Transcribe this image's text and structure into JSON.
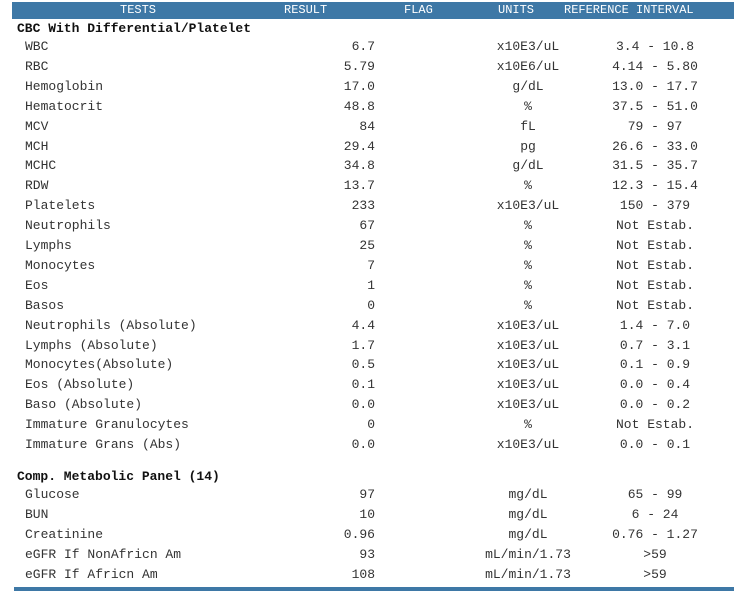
{
  "header": {
    "tests": "TESTS",
    "result": "RESULT",
    "flag": "FLAG",
    "units": "UNITS",
    "reference": "REFERENCE INTERVAL"
  },
  "sections": [
    {
      "title": "CBC With Differential/Platelet",
      "rows": [
        {
          "test": "WBC",
          "result": "6.7",
          "units": "x10E3/uL",
          "ref": "3.4 - 10.8"
        },
        {
          "test": "RBC",
          "result": "5.79",
          "units": "x10E6/uL",
          "ref": "4.14 - 5.80"
        },
        {
          "test": "Hemoglobin",
          "result": "17.0",
          "units": "g/dL",
          "ref": "13.0 - 17.7"
        },
        {
          "test": "Hematocrit",
          "result": "48.8",
          "units": "%",
          "ref": "37.5 - 51.0"
        },
        {
          "test": "MCV",
          "result": "84",
          "units": "fL",
          "ref": "79 - 97"
        },
        {
          "test": "MCH",
          "result": "29.4",
          "units": "pg",
          "ref": "26.6 - 33.0"
        },
        {
          "test": "MCHC",
          "result": "34.8",
          "units": "g/dL",
          "ref": "31.5 - 35.7"
        },
        {
          "test": "RDW",
          "result": "13.7",
          "units": "%",
          "ref": "12.3 - 15.4"
        },
        {
          "test": "Platelets",
          "result": "233",
          "units": "x10E3/uL",
          "ref": "150 - 379"
        },
        {
          "test": "Neutrophils",
          "result": "67",
          "units": "%",
          "ref": "Not Estab."
        },
        {
          "test": "Lymphs",
          "result": "25",
          "units": "%",
          "ref": "Not Estab."
        },
        {
          "test": "Monocytes",
          "result": "7",
          "units": "%",
          "ref": "Not Estab."
        },
        {
          "test": "Eos",
          "result": "1",
          "units": "%",
          "ref": "Not Estab."
        },
        {
          "test": "Basos",
          "result": "0",
          "units": "%",
          "ref": "Not Estab."
        },
        {
          "test": "Neutrophils (Absolute)",
          "result": "4.4",
          "units": "x10E3/uL",
          "ref": "1.4 - 7.0"
        },
        {
          "test": "Lymphs (Absolute)",
          "result": "1.7",
          "units": "x10E3/uL",
          "ref": "0.7 - 3.1"
        },
        {
          "test": "Monocytes(Absolute)",
          "result": "0.5",
          "units": "x10E3/uL",
          "ref": "0.1 - 0.9"
        },
        {
          "test": "Eos (Absolute)",
          "result": "0.1",
          "units": "x10E3/uL",
          "ref": "0.0 - 0.4"
        },
        {
          "test": "Baso (Absolute)",
          "result": "0.0",
          "units": "x10E3/uL",
          "ref": "0.0 - 0.2"
        },
        {
          "test": "Immature Granulocytes",
          "result": "0",
          "units": "%",
          "ref": "Not Estab."
        },
        {
          "test": "Immature Grans (Abs)",
          "result": "0.0",
          "units": "x10E3/uL",
          "ref": "0.0 - 0.1"
        }
      ]
    },
    {
      "title": "Comp. Metabolic Panel (14)",
      "rows": [
        {
          "test": "Glucose",
          "result": "97",
          "units": "mg/dL",
          "ref": "65 - 99"
        },
        {
          "test": "BUN",
          "result": "10",
          "units": "mg/dL",
          "ref": "6 - 24"
        },
        {
          "test": "Creatinine",
          "result": "0.96",
          "units": "mg/dL",
          "ref": "0.76 - 1.27"
        },
        {
          "test": "eGFR If NonAfricn Am",
          "result": "93",
          "units": "mL/min/1.73",
          "ref": ">59"
        },
        {
          "test": "eGFR If Africn Am",
          "result": "108",
          "units": "mL/min/1.73",
          "ref": ">59"
        }
      ]
    }
  ],
  "colors": {
    "header_bg": "#3e78a6",
    "header_text": "#ffffff"
  }
}
